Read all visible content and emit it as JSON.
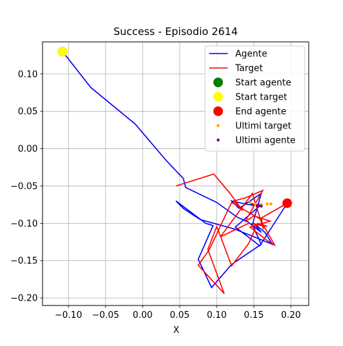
{
  "chart_data": {
    "type": "line",
    "title": "Success - Episodio 2614",
    "xlabel": "X",
    "ylabel": "",
    "xlim": [
      -0.135,
      0.224
    ],
    "ylim": [
      -0.21,
      0.143
    ],
    "xticks": [
      -0.1,
      -0.05,
      0.0,
      0.05,
      0.1,
      0.15,
      0.2
    ],
    "xtick_labels": [
      "−0.10",
      "−0.05",
      "0.00",
      "0.05",
      "0.10",
      "0.15",
      "0.20"
    ],
    "yticks": [
      0.1,
      0.05,
      0.0,
      -0.05,
      -0.1,
      -0.15,
      -0.2
    ],
    "ytick_labels": [
      "0.10",
      "0.05",
      "0.00",
      "−0.05",
      "−0.10",
      "−0.15",
      "−0.20"
    ],
    "grid": true,
    "legend_position": "top-right",
    "series": [
      {
        "name": "Agente",
        "kind": "line",
        "color": "#0000ff",
        "x": [
          -0.108,
          -0.07,
          -0.01,
          0.032,
          0.055,
          0.058,
          0.1,
          0.128,
          0.142,
          0.16,
          0.15,
          0.165,
          0.175,
          0.125,
          0.078,
          0.073,
          0.055,
          0.045,
          0.065,
          0.085,
          0.095,
          0.075,
          0.093,
          0.12,
          0.16,
          0.148,
          0.16,
          0.13,
          0.12,
          0.143,
          0.16,
          0.125,
          0.158,
          0.195
        ],
        "y": [
          0.13,
          0.082,
          0.033,
          -0.016,
          -0.04,
          -0.052,
          -0.072,
          -0.092,
          -0.098,
          -0.112,
          -0.1,
          -0.112,
          -0.128,
          -0.108,
          -0.095,
          -0.092,
          -0.08,
          -0.07,
          -0.085,
          -0.1,
          -0.103,
          -0.148,
          -0.186,
          -0.155,
          -0.128,
          -0.102,
          -0.06,
          -0.08,
          -0.07,
          -0.075,
          -0.075,
          -0.105,
          -0.13,
          -0.073
        ]
      },
      {
        "name": "Target",
        "kind": "line",
        "color": "#ff0000",
        "x": [
          0.045,
          0.096,
          0.118,
          0.135,
          0.123,
          0.138,
          0.162,
          0.138,
          0.15,
          0.172,
          0.145,
          0.168,
          0.178,
          0.158,
          0.12,
          0.09,
          0.075,
          0.11,
          0.088,
          0.1,
          0.12,
          0.143,
          0.155,
          0.168,
          0.143,
          0.105,
          0.148,
          0.163,
          0.16,
          0.195
        ],
        "y": [
          -0.05,
          -0.034,
          -0.06,
          -0.083,
          -0.07,
          -0.066,
          -0.056,
          -0.098,
          -0.09,
          -0.097,
          -0.105,
          -0.123,
          -0.129,
          -0.094,
          -0.072,
          -0.135,
          -0.156,
          -0.194,
          -0.135,
          -0.104,
          -0.157,
          -0.127,
          -0.1,
          -0.104,
          -0.1,
          -0.118,
          -0.06,
          -0.108,
          -0.093,
          -0.073
        ]
      },
      {
        "name": "Start agente",
        "kind": "scatter",
        "color": "#008000",
        "size": "large",
        "x": [
          -0.108
        ],
        "y": [
          0.13
        ]
      },
      {
        "name": "Start target",
        "kind": "scatter",
        "color": "#ffff00",
        "size": "large",
        "x": [
          -0.108
        ],
        "y": [
          0.13
        ]
      },
      {
        "name": "End agente",
        "kind": "scatter",
        "color": "#ff0000",
        "size": "large",
        "x": [
          0.195
        ],
        "y": [
          -0.073
        ]
      },
      {
        "name": "Ultimi target",
        "kind": "scatter",
        "color": "#ffa500",
        "size": "small",
        "x": [
          0.145,
          0.152,
          0.16,
          0.168,
          0.173
        ],
        "y": [
          -0.072,
          -0.074,
          -0.075,
          -0.074,
          -0.074
        ]
      },
      {
        "name": "Ultimi agente",
        "kind": "scatter",
        "color": "#800080",
        "size": "small",
        "x": [
          0.148,
          0.155,
          0.16
        ],
        "y": [
          -0.075,
          -0.076,
          -0.077
        ]
      }
    ]
  }
}
